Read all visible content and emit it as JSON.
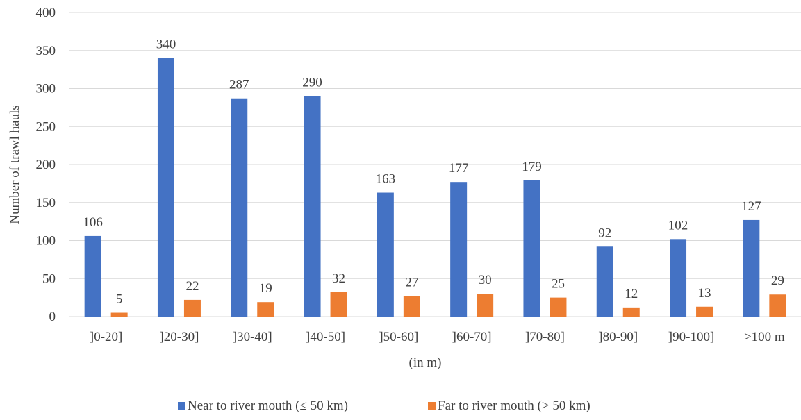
{
  "chart_data": {
    "type": "bar",
    "title": "",
    "xlabel": "(in m)",
    "ylabel": "Number of trawl hauls",
    "ylim": [
      0,
      400
    ],
    "yticks": [
      0,
      50,
      100,
      150,
      200,
      250,
      300,
      350,
      400
    ],
    "grid": "horizontal",
    "legend_position": "bottom",
    "categories": [
      "]0-20]",
      "]20-30]",
      "]30-40]",
      "]40-50]",
      "]50-60]",
      "]60-70]",
      "]70-80]",
      "]80-90]",
      "]90-100]",
      ">100 m"
    ],
    "series": [
      {
        "name": "Near to river mouth (≤ 50 km)",
        "color": "#4472C4",
        "values": [
          106,
          340,
          287,
          290,
          163,
          177,
          179,
          92,
          102,
          127
        ]
      },
      {
        "name": "Far to river mouth (> 50 km)",
        "color": "#ED7D31",
        "values": [
          5,
          22,
          19,
          32,
          27,
          30,
          25,
          12,
          13,
          29
        ]
      }
    ]
  }
}
